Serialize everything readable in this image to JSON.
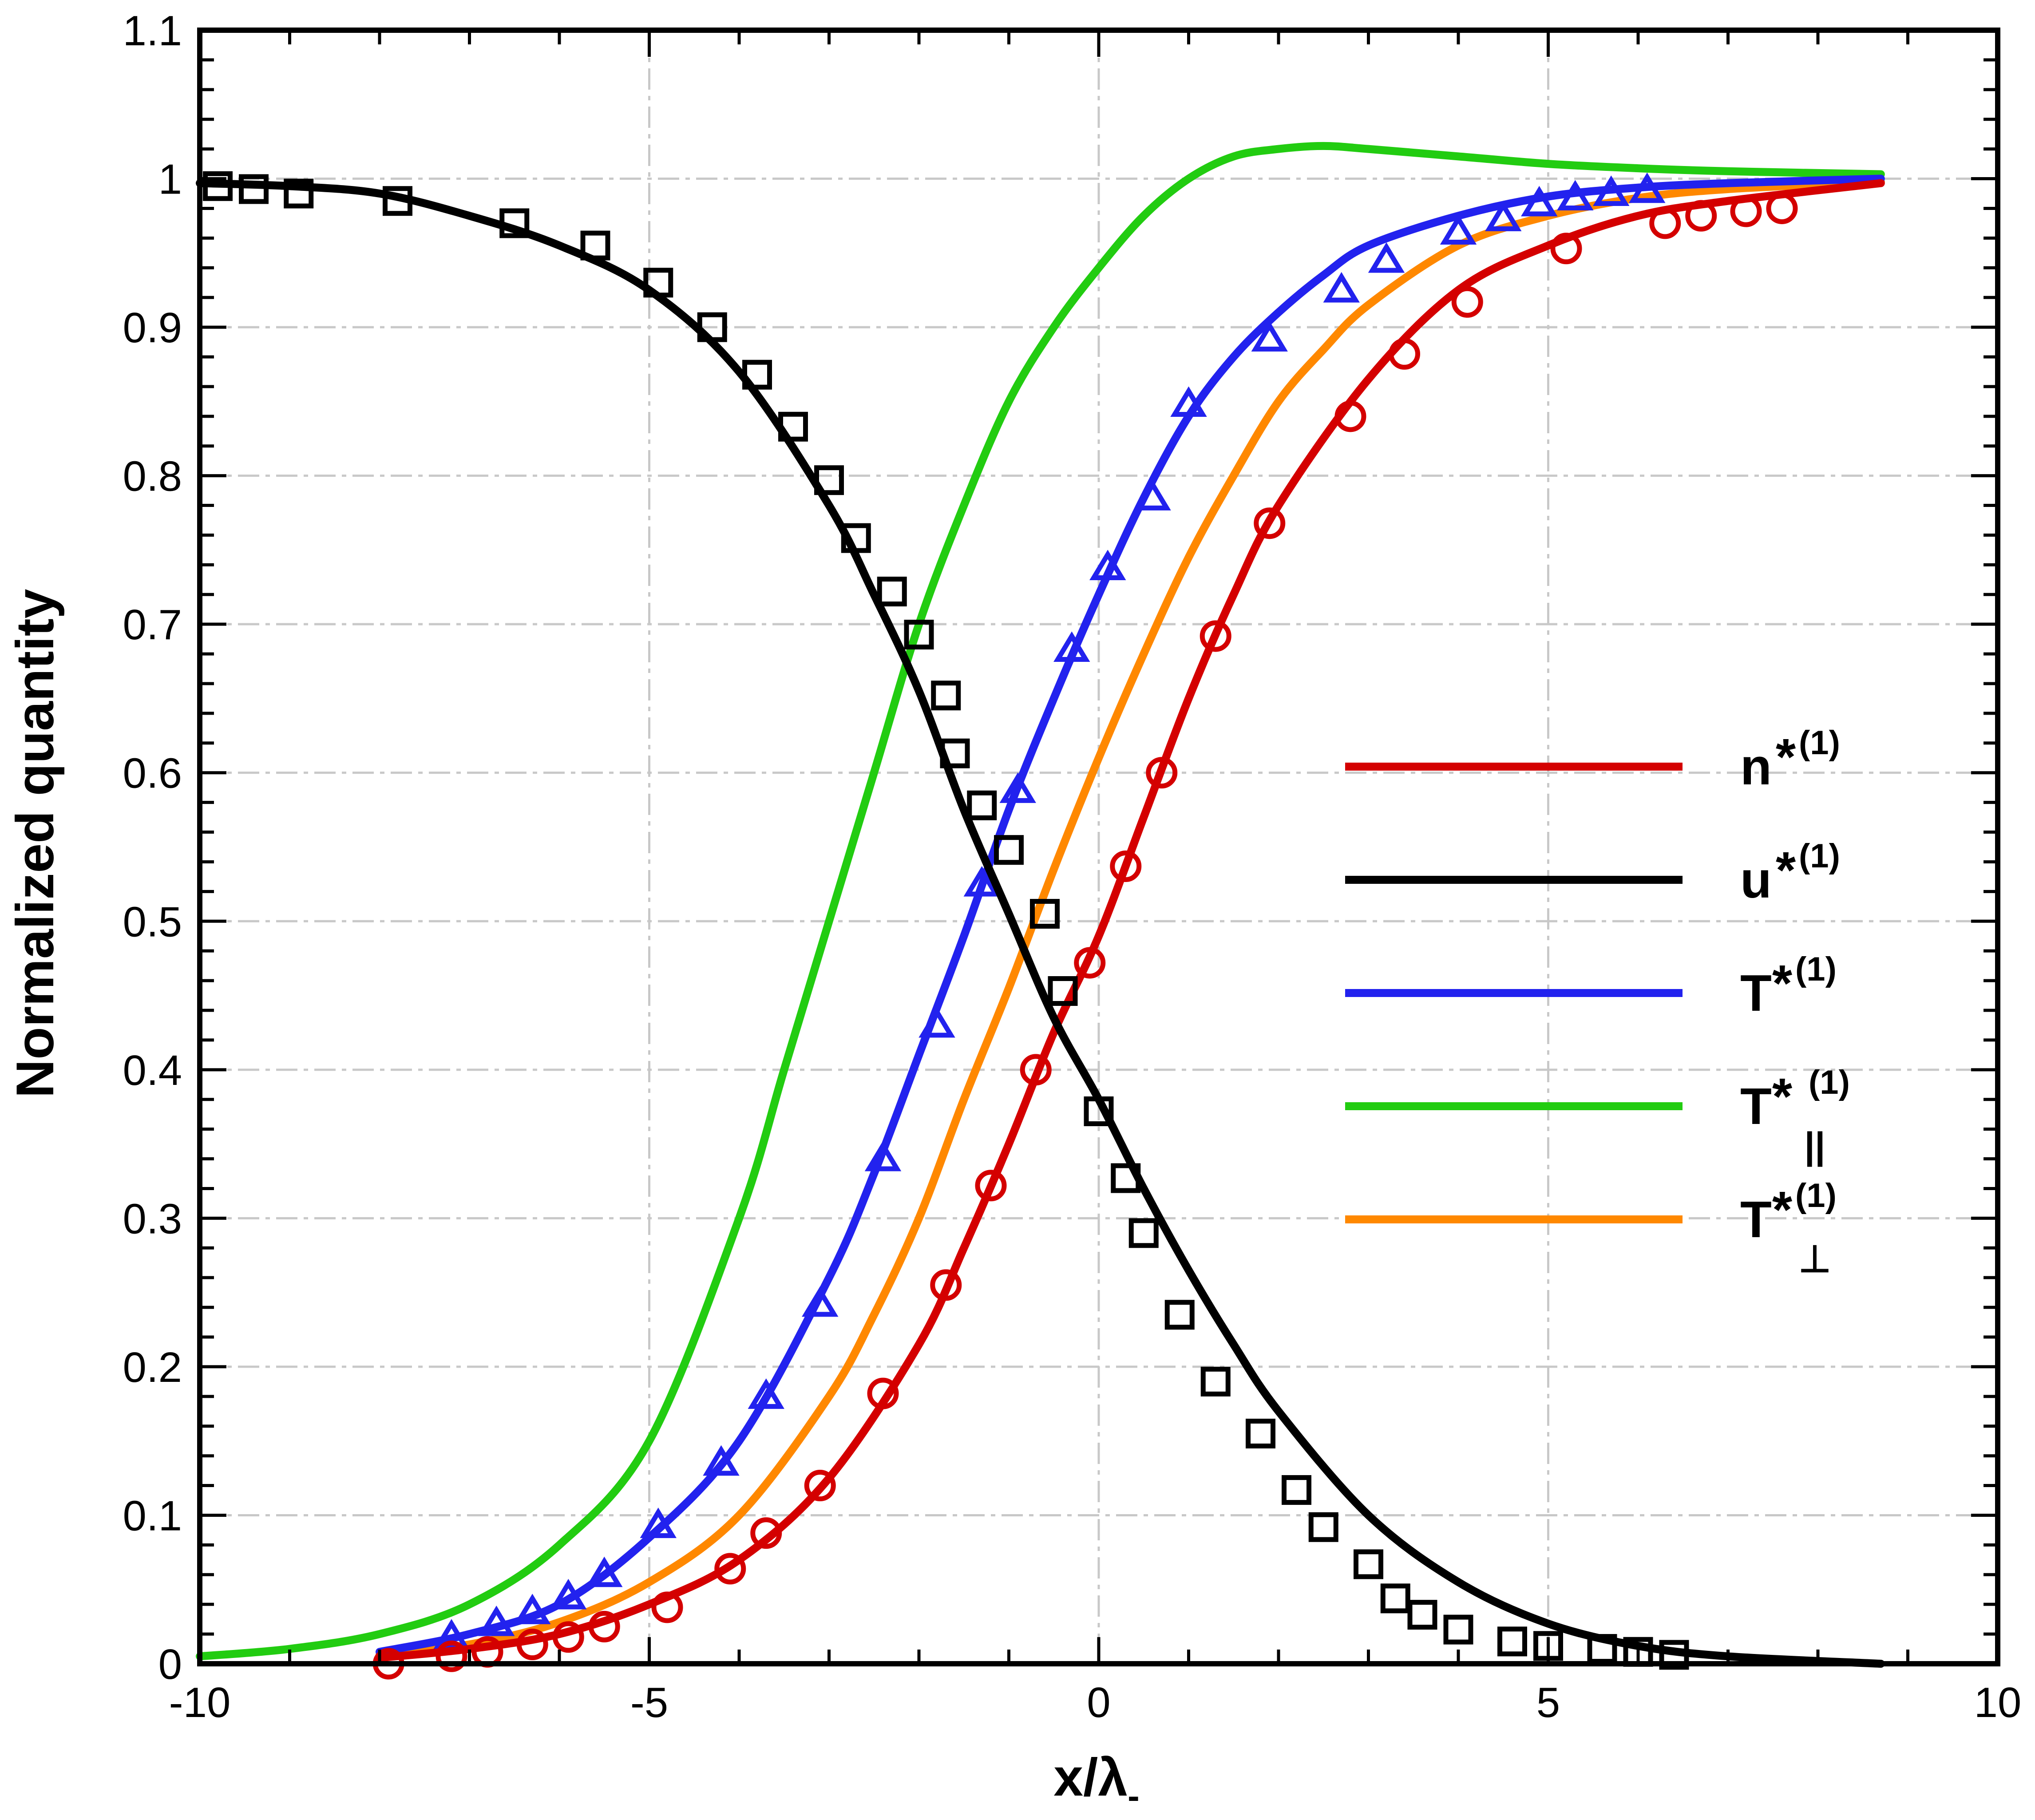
{
  "chart_data": {
    "type": "line",
    "xlabel": "x/λ",
    "xlabel_sub": "-",
    "ylabel": "Normalized quantity",
    "xlim": [
      -10,
      10
    ],
    "ylim": [
      0,
      1.1
    ],
    "grid": true,
    "legend_position": "center-right",
    "x_ticks": [
      -10,
      -5,
      0,
      5,
      10
    ],
    "x_tick_labels": [
      "-10",
      "-5",
      "0",
      "5",
      "10"
    ],
    "y_ticks": [
      0,
      0.1,
      0.2,
      0.3,
      0.4,
      0.5,
      0.6,
      0.7,
      0.8,
      0.9,
      1,
      1.1
    ],
    "y_tick_labels": [
      "0",
      "0.1",
      "0.2",
      "0.3",
      "0.4",
      "0.5",
      "0.6",
      "0.7",
      "0.8",
      "0.9",
      "1",
      "1.1"
    ],
    "series": [
      {
        "name": "n",
        "legend_sup": "*(1)",
        "legend_sub": "",
        "color": "#d40000",
        "line": {
          "x": [
            -8,
            -7,
            -6,
            -5,
            -4,
            -3,
            -2,
            -1.5,
            -1,
            -0.5,
            0,
            0.5,
            1,
            1.5,
            2,
            3,
            4,
            5,
            6,
            7,
            8.7
          ],
          "y": [
            0.004,
            0.01,
            0.02,
            0.04,
            0.07,
            0.125,
            0.215,
            0.28,
            0.35,
            0.425,
            0.49,
            0.57,
            0.65,
            0.72,
            0.78,
            0.865,
            0.925,
            0.955,
            0.975,
            0.985,
            0.997
          ]
        },
        "marker": "circle",
        "markers": {
          "x": [
            -7.9,
            -7.2,
            -6.8,
            -6.3,
            -5.9,
            -5.5,
            -4.8,
            -4.1,
            -3.7,
            -3.1,
            -2.4,
            -1.7,
            -1.2,
            -0.7,
            -0.1,
            0.3,
            0.7,
            1.3,
            1.9,
            2.8,
            3.4,
            4.1,
            5.2,
            6.3,
            6.7,
            7.2,
            7.6
          ],
          "y": [
            0.0,
            0.005,
            0.008,
            0.013,
            0.018,
            0.025,
            0.038,
            0.064,
            0.088,
            0.12,
            0.182,
            0.255,
            0.322,
            0.4,
            0.472,
            0.537,
            0.6,
            0.692,
            0.768,
            0.84,
            0.882,
            0.917,
            0.953,
            0.97,
            0.975,
            0.978,
            0.98
          ]
        }
      },
      {
        "name": "u",
        "legend_sup": "*(1)",
        "legend_sub": "",
        "color": "#000000",
        "line": {
          "x": [
            -10,
            -9,
            -8,
            -7,
            -6,
            -5,
            -4,
            -3,
            -2.5,
            -2,
            -1.5,
            -1,
            -0.5,
            0,
            0.5,
            1,
            1.5,
            2,
            3,
            4,
            5,
            6,
            7,
            8.7
          ],
          "y": [
            0.997,
            0.995,
            0.99,
            0.975,
            0.955,
            0.925,
            0.87,
            0.78,
            0.72,
            0.655,
            0.575,
            0.505,
            0.435,
            0.38,
            0.32,
            0.265,
            0.215,
            0.17,
            0.1,
            0.055,
            0.027,
            0.012,
            0.005,
            0.0
          ]
        },
        "marker": "square",
        "markers": {
          "x": [
            -9.8,
            -9.4,
            -8.9,
            -7.8,
            -6.5,
            -5.6,
            -4.9,
            -4.3,
            -3.8,
            -3.4,
            -3.0,
            -2.7,
            -2.3,
            -2.0,
            -1.7,
            -1.6,
            -1.3,
            -1.0,
            -0.6,
            -0.4,
            0,
            0.3,
            0.5,
            0.9,
            1.3,
            1.8,
            2.2,
            2.5,
            3.0,
            3.3,
            3.6,
            4.0,
            4.6,
            5.0,
            5.6,
            6.0,
            6.4
          ],
          "y": [
            0.995,
            0.993,
            0.99,
            0.985,
            0.97,
            0.955,
            0.93,
            0.9,
            0.868,
            0.833,
            0.797,
            0.758,
            0.722,
            0.693,
            0.652,
            0.613,
            0.578,
            0.548,
            0.505,
            0.453,
            0.372,
            0.327,
            0.29,
            0.235,
            0.19,
            0.155,
            0.117,
            0.092,
            0.067,
            0.044,
            0.033,
            0.023,
            0.015,
            0.012,
            0.01,
            0.008,
            0.006
          ]
        }
      },
      {
        "name": "T",
        "legend_sup": "*(1)",
        "legend_sub": "",
        "color": "#2222ee",
        "line": {
          "x": [
            -8,
            -7,
            -6,
            -5,
            -4,
            -3,
            -2.5,
            -2,
            -1.5,
            -1,
            -0.5,
            0,
            0.5,
            1,
            1.5,
            2,
            2.5,
            3,
            4,
            5,
            6,
            7,
            8.7
          ],
          "y": [
            0.008,
            0.02,
            0.04,
            0.085,
            0.15,
            0.26,
            0.33,
            0.41,
            0.49,
            0.575,
            0.65,
            0.72,
            0.785,
            0.84,
            0.88,
            0.91,
            0.935,
            0.955,
            0.975,
            0.988,
            0.994,
            0.997,
            1.0
          ]
        },
        "marker": "triangle",
        "markers": {
          "x": [
            -7.2,
            -6.7,
            -6.3,
            -5.9,
            -5.5,
            -4.9,
            -4.2,
            -3.7,
            -3.1,
            -2.4,
            -1.8,
            -1.3,
            -0.9,
            -0.3,
            0.1,
            0.6,
            1.0,
            1.9,
            2.7,
            3.2,
            4.0,
            4.5,
            4.9,
            5.3,
            5.7,
            6.1
          ],
          "y": [
            0.018,
            0.027,
            0.035,
            0.045,
            0.06,
            0.093,
            0.135,
            0.18,
            0.242,
            0.34,
            0.43,
            0.525,
            0.588,
            0.683,
            0.738,
            0.785,
            0.848,
            0.892,
            0.925,
            0.945,
            0.964,
            0.973,
            0.983,
            0.987,
            0.99,
            0.992
          ]
        }
      },
      {
        "name": "T",
        "legend_sup": "* (1)",
        "legend_sub": "||",
        "color": "#22cc11",
        "line": {
          "x": [
            -10,
            -9,
            -8,
            -7,
            -6,
            -5,
            -4,
            -3.5,
            -3,
            -2.5,
            -2,
            -1.5,
            -1,
            -0.5,
            0,
            0.5,
            1,
            1.5,
            2,
            2.5,
            3,
            4,
            5,
            6,
            7,
            8.7
          ],
          "y": [
            0.005,
            0.01,
            0.02,
            0.04,
            0.08,
            0.15,
            0.3,
            0.4,
            0.5,
            0.6,
            0.7,
            0.78,
            0.85,
            0.9,
            0.94,
            0.975,
            1.0,
            1.015,
            1.02,
            1.022,
            1.02,
            1.015,
            1.01,
            1.007,
            1.005,
            1.003
          ]
        },
        "marker": "none",
        "markers": {
          "x": [],
          "y": []
        }
      },
      {
        "name": "T",
        "legend_sup": "*(1)",
        "legend_sub": "⊥",
        "color": "#ff8800",
        "line": {
          "x": [
            -8,
            -7,
            -6,
            -5,
            -4,
            -3,
            -2.5,
            -2,
            -1.5,
            -1,
            -0.5,
            0,
            0.5,
            1,
            1.5,
            2,
            2.5,
            3,
            4,
            5,
            6,
            7,
            8.7
          ],
          "y": [
            0.006,
            0.013,
            0.028,
            0.055,
            0.1,
            0.18,
            0.235,
            0.3,
            0.38,
            0.455,
            0.535,
            0.61,
            0.68,
            0.745,
            0.8,
            0.85,
            0.885,
            0.915,
            0.955,
            0.975,
            0.987,
            0.993,
            0.998
          ]
        },
        "marker": "none",
        "markers": {
          "x": [],
          "y": []
        }
      }
    ]
  }
}
